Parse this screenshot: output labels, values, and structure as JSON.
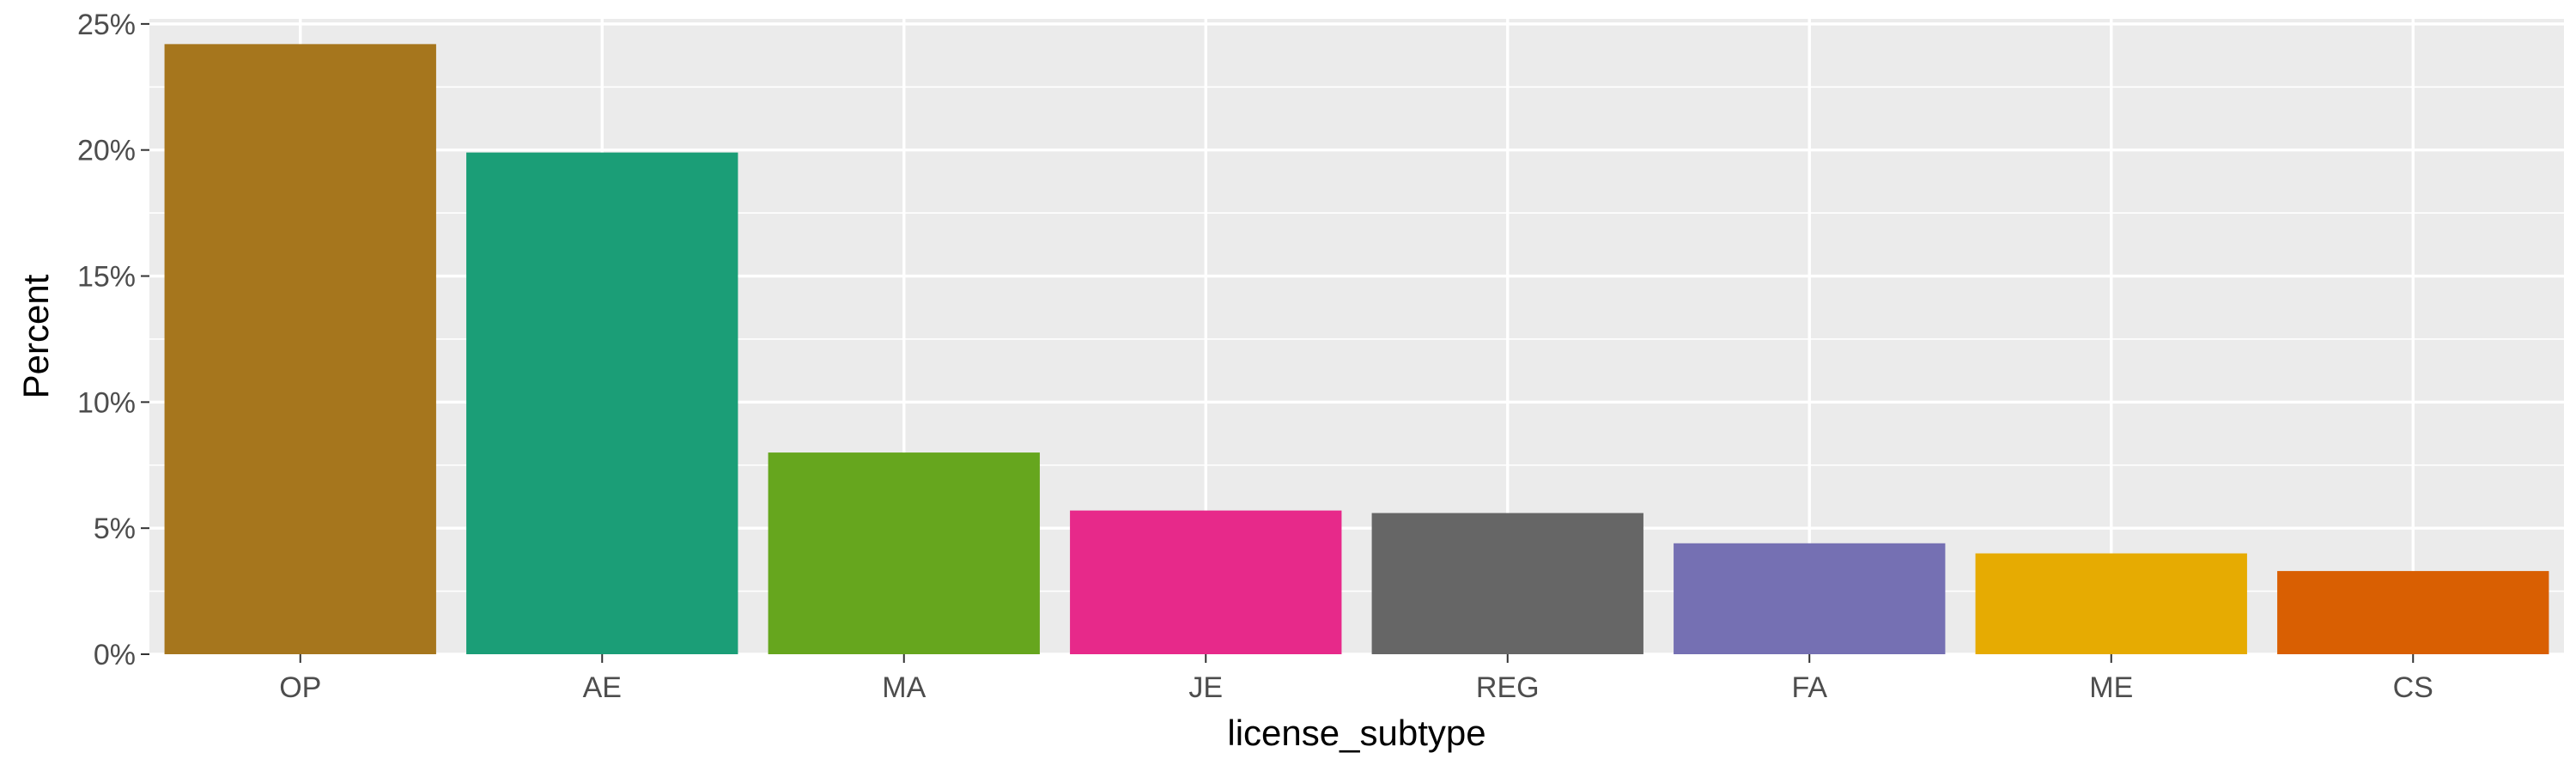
{
  "chart_data": {
    "type": "bar",
    "title": "",
    "xlabel": "license_subtype",
    "ylabel": "Percent",
    "categories": [
      "OP",
      "AE",
      "MA",
      "JE",
      "REG",
      "FA",
      "ME",
      "CS"
    ],
    "values": [
      24.2,
      19.9,
      8.0,
      5.7,
      5.6,
      4.4,
      4.0,
      3.3
    ],
    "colors": [
      "#A6761D",
      "#1B9E77",
      "#66A61E",
      "#E7298A",
      "#666666",
      "#7570B3",
      "#E6AB02",
      "#D95F02"
    ],
    "ylim": [
      0,
      25
    ],
    "yticks": [
      0,
      5,
      10,
      15,
      20,
      25
    ],
    "ytick_labels": [
      "0%",
      "5%",
      "10%",
      "15%",
      "20%",
      "25%"
    ],
    "grid": true,
    "legend": "none",
    "panel_background": "#EBEBEB",
    "grid_color": "#FFFFFF"
  }
}
